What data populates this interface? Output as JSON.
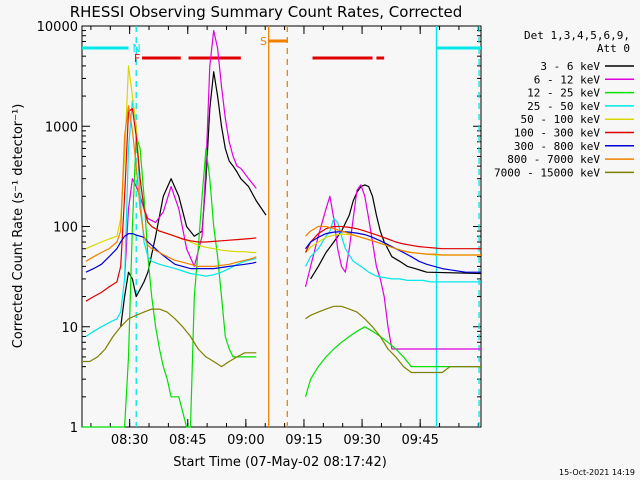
{
  "chart_data": {
    "type": "line",
    "title": "RHESSI Observing Summary Count Rates, Corrected",
    "xlabel": "Start Time (07-May-02 08:17:42)",
    "ylabel": "Corrected Count Rate (s⁻¹ detector⁻¹)",
    "x_unit": "minutes since 08:17:42",
    "xlim": [
      0,
      103
    ],
    "ylim": [
      1,
      10000
    ],
    "y_scale": "log",
    "x_ticks": [
      {
        "label": "08:30",
        "value": 12.3
      },
      {
        "label": "08:45",
        "value": 27.3
      },
      {
        "label": "09:00",
        "value": 42.3
      },
      {
        "label": "09:15",
        "value": 57.3
      },
      {
        "label": "09:30",
        "value": 72.3
      },
      {
        "label": "09:45",
        "value": 87.3
      }
    ],
    "y_ticks": [
      {
        "label": "1",
        "value": 1
      },
      {
        "label": "10",
        "value": 10
      },
      {
        "label": "100",
        "value": 100
      },
      {
        "label": "1000",
        "value": 1000
      },
      {
        "label": "10000",
        "value": 10000
      }
    ],
    "legend_header": [
      "Det 1,3,4,5,6,9,",
      "Att 0"
    ],
    "legend_position": "right",
    "gap": [
      47.5,
      57.7
    ],
    "series": [
      {
        "name": "3 - 6 keV",
        "color": "#000000",
        "x": [
          0,
          3,
          6,
          9,
          10,
          11,
          12,
          13,
          14,
          16,
          17,
          19,
          21,
          23,
          25,
          27,
          29,
          31,
          32,
          33,
          34,
          35,
          36,
          37,
          38,
          39,
          40,
          41,
          43,
          45,
          47.5,
          57.7,
          59,
          61,
          63,
          65,
          67,
          69,
          70,
          71,
          72,
          73,
          74,
          75,
          76,
          77,
          78,
          80,
          82,
          84,
          86,
          88,
          89,
          103
        ],
        "y": [
          null,
          null,
          null,
          null,
          10,
          20,
          35,
          30,
          20,
          28,
          35,
          80,
          200,
          300,
          200,
          100,
          80,
          90,
          300,
          1500,
          3500,
          2000,
          1000,
          600,
          450,
          400,
          350,
          300,
          250,
          180,
          130,
          null,
          30,
          40,
          55,
          70,
          90,
          130,
          180,
          220,
          250,
          260,
          250,
          200,
          130,
          90,
          70,
          50,
          45,
          40,
          38,
          36,
          35,
          34
        ]
      },
      {
        "name": "6 - 12 keV",
        "color": "#e000e0",
        "x": [
          0,
          3,
          6,
          9,
          10,
          11,
          12,
          13,
          14,
          15,
          16,
          17,
          19,
          21,
          23,
          25,
          27,
          29,
          31,
          32,
          33,
          34,
          35,
          36,
          37,
          38,
          39,
          40,
          41,
          43,
          45,
          47.5,
          57.7,
          59,
          61,
          63,
          64,
          65,
          66,
          67,
          68,
          69,
          70,
          71,
          72,
          73,
          74,
          75,
          76,
          77,
          78,
          79,
          80,
          103
        ],
        "y": [
          null,
          null,
          null,
          null,
          null,
          30,
          150,
          300,
          250,
          200,
          150,
          120,
          110,
          140,
          250,
          150,
          60,
          40,
          80,
          400,
          4000,
          9000,
          6000,
          2500,
          1200,
          700,
          500,
          400,
          380,
          300,
          240,
          null,
          25,
          40,
          80,
          150,
          200,
          120,
          60,
          40,
          35,
          60,
          120,
          230,
          260,
          200,
          120,
          70,
          40,
          30,
          20,
          10,
          6,
          6
        ]
      },
      {
        "name": "12 - 25 keV",
        "color": "#00e000",
        "x": [
          0,
          2,
          4,
          6,
          8,
          10,
          11,
          12,
          13,
          14,
          15,
          16,
          17,
          18,
          19,
          20,
          21,
          22,
          23,
          25,
          27,
          28,
          29,
          30,
          31,
          32,
          33,
          34,
          35,
          36,
          37,
          38,
          39,
          40,
          41,
          43,
          45,
          47.5,
          57.7,
          59,
          61,
          63,
          65,
          67,
          69,
          71,
          73,
          75,
          77,
          79,
          81,
          83,
          85,
          87,
          89,
          91,
          93,
          95,
          97,
          99,
          103
        ],
        "y": [
          1,
          1,
          1,
          1,
          1,
          1,
          1,
          5,
          100,
          800,
          600,
          200,
          50,
          20,
          10,
          6,
          4,
          3,
          2,
          2,
          1,
          1,
          20,
          60,
          200,
          600,
          300,
          100,
          50,
          20,
          8,
          6,
          5,
          5,
          5,
          5,
          5,
          null,
          2,
          3,
          4,
          5,
          6,
          7,
          8,
          9,
          10,
          9,
          8,
          7,
          6,
          5,
          4,
          4,
          4,
          4,
          4,
          4,
          4,
          4,
          4
        ]
      },
      {
        "name": "25 - 50 keV",
        "color": "#00e8e8",
        "x": [
          0,
          1,
          3,
          5,
          7,
          9,
          10,
          11,
          12,
          13,
          14,
          15,
          16,
          17,
          18,
          20,
          22,
          24,
          26,
          28,
          30,
          32,
          34,
          36,
          38,
          40,
          42,
          44,
          45,
          47.5,
          57.7,
          59,
          61,
          63,
          64,
          65,
          66,
          67,
          68,
          70,
          72,
          74,
          76,
          78,
          80,
          82,
          84,
          86,
          88,
          90,
          92,
          94,
          96,
          98,
          100,
          103
        ],
        "y": [
          null,
          8,
          9,
          10,
          11,
          12,
          14,
          30,
          600,
          1800,
          1000,
          200,
          70,
          50,
          45,
          42,
          40,
          38,
          36,
          34,
          33,
          32,
          33,
          35,
          38,
          42,
          45,
          47,
          48,
          null,
          40,
          50,
          60,
          80,
          90,
          120,
          110,
          80,
          60,
          45,
          40,
          35,
          32,
          31,
          30,
          30,
          29,
          29,
          29,
          28,
          28,
          28,
          28,
          28,
          28,
          28
        ]
      },
      {
        "name": "50 - 100 keV",
        "color": "#d8d800",
        "x": [
          0,
          1,
          3,
          5,
          7,
          9,
          10,
          11,
          12,
          13,
          14,
          15,
          16,
          17,
          18,
          20,
          22,
          24,
          26,
          28,
          30,
          32,
          34,
          36,
          38,
          40,
          42,
          44,
          45,
          47.5,
          57.7,
          59,
          61,
          63,
          65,
          67,
          69,
          71,
          73,
          75,
          77,
          79,
          81,
          83,
          85,
          87,
          89,
          91,
          93,
          95,
          97,
          99,
          103
        ],
        "y": [
          null,
          60,
          65,
          70,
          75,
          80,
          120,
          500,
          4000,
          2000,
          1000,
          300,
          150,
          110,
          100,
          90,
          85,
          80,
          75,
          70,
          65,
          62,
          60,
          58,
          57,
          56,
          56,
          55,
          55,
          null,
          55,
          62,
          70,
          78,
          82,
          84,
          83,
          80,
          76,
          72,
          68,
          64,
          60,
          57,
          55,
          54,
          53,
          52,
          52,
          52,
          52,
          52,
          52
        ]
      },
      {
        "name": "100 - 300 keV",
        "color": "#e00000",
        "x": [
          0,
          1,
          3,
          5,
          7,
          9,
          10,
          11,
          12,
          13,
          14,
          15,
          16,
          17,
          18,
          20,
          22,
          24,
          26,
          28,
          30,
          32,
          34,
          36,
          38,
          40,
          42,
          44,
          45,
          47.5,
          57.7,
          59,
          61,
          63,
          65,
          67,
          69,
          71,
          73,
          75,
          77,
          79,
          81,
          83,
          85,
          87,
          89,
          91,
          93,
          95,
          97,
          99,
          103
        ],
        "y": [
          null,
          18,
          20,
          22,
          25,
          28,
          40,
          200,
          1400,
          1500,
          800,
          300,
          150,
          110,
          100,
          90,
          85,
          80,
          75,
          72,
          70,
          70,
          71,
          72,
          73,
          74,
          75,
          76,
          77,
          null,
          55,
          70,
          85,
          95,
          100,
          100,
          98,
          95,
          90,
          85,
          80,
          75,
          70,
          67,
          65,
          63,
          62,
          61,
          60,
          60,
          60,
          60,
          60
        ]
      },
      {
        "name": "300 - 800 keV",
        "color": "#0000d8",
        "x": [
          0,
          1,
          3,
          5,
          7,
          9,
          10,
          11,
          12,
          13,
          14,
          15,
          16,
          17,
          18,
          20,
          22,
          24,
          26,
          28,
          30,
          32,
          34,
          36,
          38,
          40,
          42,
          44,
          45,
          47.5,
          57.7,
          59,
          61,
          63,
          65,
          67,
          69,
          71,
          73,
          75,
          77,
          79,
          81,
          83,
          85,
          87,
          89,
          91,
          93,
          95,
          97,
          99,
          103
        ],
        "y": [
          null,
          35,
          38,
          42,
          50,
          60,
          70,
          80,
          85,
          85,
          82,
          80,
          78,
          70,
          65,
          55,
          48,
          42,
          40,
          38,
          38,
          38,
          38,
          39,
          40,
          41,
          42,
          43,
          44,
          null,
          60,
          70,
          78,
          85,
          88,
          89,
          88,
          86,
          83,
          78,
          72,
          66,
          60,
          55,
          50,
          45,
          42,
          40,
          38,
          37,
          36,
          35,
          35
        ]
      },
      {
        "name": "800 - 7000 keV",
        "color": "#f08000",
        "x": [
          0,
          1,
          3,
          5,
          7,
          9,
          10,
          11,
          12,
          13,
          14,
          15,
          16,
          17,
          18,
          20,
          22,
          24,
          26,
          28,
          30,
          32,
          34,
          36,
          38,
          40,
          42,
          44,
          45,
          47.5,
          57.7,
          59,
          61,
          63,
          65,
          67,
          69,
          71,
          73,
          75,
          77,
          79,
          81,
          83,
          85,
          87,
          89,
          91,
          93,
          95,
          97,
          99,
          103
        ],
        "y": [
          null,
          45,
          50,
          55,
          60,
          70,
          90,
          800,
          1600,
          900,
          400,
          150,
          80,
          65,
          60,
          55,
          50,
          46,
          44,
          42,
          40,
          40,
          40,
          41,
          42,
          44,
          46,
          48,
          50,
          null,
          80,
          90,
          100,
          100,
          95,
          90,
          85,
          80,
          76,
          72,
          68,
          64,
          60,
          57,
          55,
          54,
          53,
          53,
          52,
          52,
          52,
          52,
          52
        ]
      },
      {
        "name": "7000 - 15000 keV",
        "color": "#808000",
        "x": [
          0,
          2,
          4,
          6,
          8,
          10,
          12,
          14,
          16,
          18,
          20,
          22,
          24,
          26,
          28,
          30,
          32,
          34,
          36,
          38,
          40,
          42,
          44,
          45,
          47.5,
          57.7,
          59,
          61,
          63,
          65,
          67,
          69,
          71,
          73,
          75,
          77,
          79,
          81,
          83,
          85,
          87,
          89,
          91,
          93,
          95,
          97,
          99,
          103
        ],
        "y": [
          4.5,
          4.5,
          5,
          6,
          8,
          10,
          12,
          13,
          14,
          15,
          15,
          14,
          12,
          10,
          8,
          6,
          5,
          4.5,
          4,
          4.5,
          5,
          5.5,
          5.5,
          5.5,
          null,
          12,
          13,
          14,
          15,
          16,
          16,
          15,
          14,
          12,
          10,
          8,
          6,
          5,
          4,
          3.5,
          3.5,
          3.5,
          3.5,
          3.5,
          4,
          4,
          4,
          4
        ]
      }
    ],
    "flags": [
      {
        "label": "N",
        "color": "#00e8e8",
        "segments": [
          [
            0,
            12
          ],
          [
            91.5,
            103
          ]
        ]
      },
      {
        "label": "F",
        "color": "#e00000",
        "segments": [
          [
            15.5,
            25.5
          ],
          [
            27.5,
            41
          ],
          [
            59.5,
            75
          ],
          [
            76,
            78
          ]
        ]
      },
      {
        "label": "S",
        "color": "#f08000",
        "segments": [
          [
            48,
            53
          ]
        ]
      }
    ],
    "markers": [
      {
        "color": "#00e8e8",
        "x": 14,
        "style": "dashed"
      },
      {
        "color": "#f08000",
        "x": 48.2,
        "style": "solid"
      },
      {
        "color": "#f08000",
        "x": 53,
        "style": "dashed"
      },
      {
        "color": "#00e8e8",
        "x": 91.5,
        "style": "solid"
      },
      {
        "color": "#00e8e8",
        "x": 102.5,
        "style": "dashed"
      }
    ]
  },
  "footer": {
    "timestamp": "15-Oct-2021 14:19"
  }
}
